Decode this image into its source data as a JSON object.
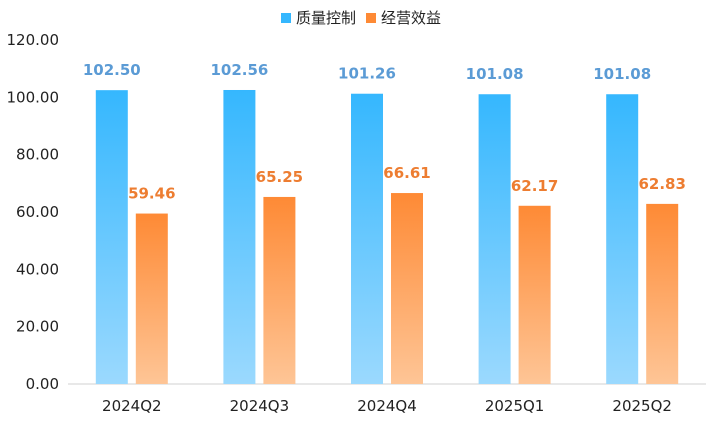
{
  "chart_data": {
    "type": "bar",
    "categories": [
      "2024Q2",
      "2024Q3",
      "2024Q4",
      "2025Q1",
      "2025Q2"
    ],
    "series": [
      {
        "name": "质量控制",
        "values": [
          102.5,
          102.56,
          101.26,
          101.08,
          101.08
        ],
        "labels": [
          "102.50",
          "102.56",
          "101.26",
          "101.08",
          "101.08"
        ],
        "color_top": "#35B7FE",
        "color_bottom": "#9BD9FE",
        "label_color": "#5B9BD5"
      },
      {
        "name": "经营效益",
        "values": [
          59.46,
          65.25,
          66.61,
          62.17,
          62.83
        ],
        "labels": [
          "59.46",
          "65.25",
          "66.61",
          "62.17",
          "62.83"
        ],
        "color_top": "#FE8A35",
        "color_bottom": "#FEC596",
        "label_color": "#ED7D31"
      }
    ],
    "yticks": [
      "0.00",
      "20.00",
      "40.00",
      "60.00",
      "80.00",
      "100.00",
      "120.00"
    ],
    "ylim": [
      0,
      120
    ],
    "legend_position": "top-center",
    "grid": false
  }
}
